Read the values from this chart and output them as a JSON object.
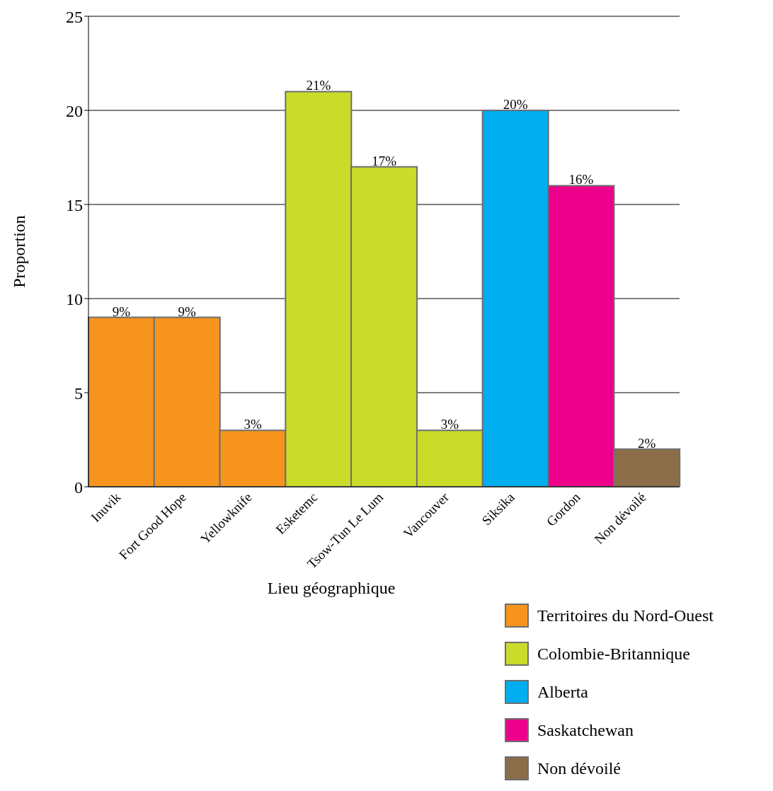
{
  "chart_data": {
    "type": "bar",
    "xlabel": "Lieu géographique",
    "ylabel": "Proportion",
    "categories": [
      "Inuvik",
      "Fort Good Hope",
      "Yellowknife",
      "Esketemc",
      "Tsow-Tun Le Lum",
      "Vancouver",
      "Siksika",
      "Gordon",
      "Non dévoilé"
    ],
    "series": [
      {
        "name": "Territoires du Nord-Ouest",
        "color": "#f7941d",
        "values": [
          9,
          9,
          3,
          null,
          null,
          null,
          null,
          null,
          null
        ],
        "value_labels": [
          "9%",
          "9%",
          "3%",
          null,
          null,
          null,
          null,
          null,
          null
        ]
      },
      {
        "name": "Colombie-Britannique",
        "color": "#cbdb2a",
        "values": [
          null,
          null,
          null,
          21,
          17,
          3,
          null,
          null,
          null
        ],
        "value_labels": [
          null,
          null,
          null,
          "21%",
          "17%",
          "3%",
          null,
          null,
          null
        ]
      },
      {
        "name": "Alberta",
        "color": "#00aeef",
        "values": [
          null,
          null,
          null,
          null,
          null,
          null,
          20,
          null,
          null
        ],
        "value_labels": [
          null,
          null,
          null,
          null,
          null,
          null,
          "20%",
          null,
          null
        ]
      },
      {
        "name": "Saskatchewan",
        "color": "#ec008c",
        "values": [
          null,
          null,
          null,
          null,
          null,
          null,
          null,
          16,
          null
        ],
        "value_labels": [
          null,
          null,
          null,
          null,
          null,
          null,
          null,
          "16%",
          null
        ]
      },
      {
        "name": "Non dévoilé",
        "color": "#8c6d4a",
        "values": [
          null,
          null,
          null,
          null,
          null,
          null,
          null,
          null,
          2
        ],
        "value_labels": [
          null,
          null,
          null,
          null,
          null,
          null,
          null,
          null,
          "2%"
        ]
      }
    ],
    "ylim": [
      0,
      25
    ],
    "yticks": [
      0,
      5,
      10,
      15,
      20,
      25
    ],
    "grid": "y",
    "legend": "bottom right"
  }
}
